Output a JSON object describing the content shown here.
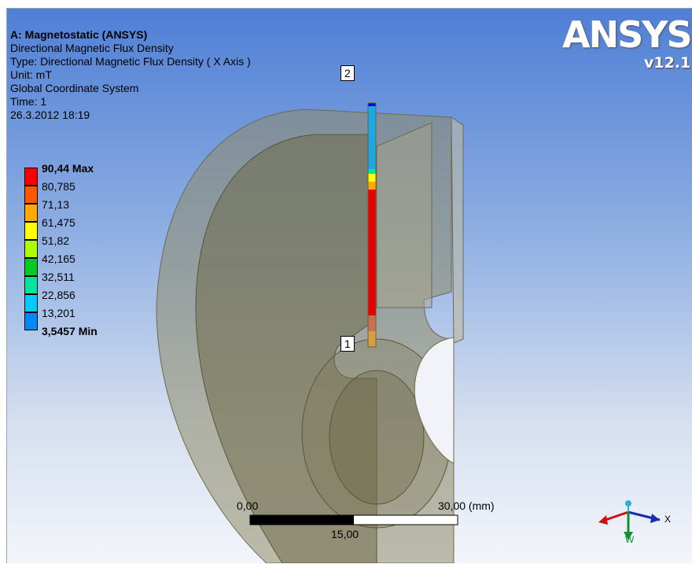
{
  "result_info": {
    "title": "A: Magnetostatic (ANSYS)",
    "result_name": "Directional Magnetic Flux Density",
    "type": "Type: Directional Magnetic Flux Density ( X Axis )",
    "unit": "Unit: mT",
    "coordinate_system": "Global Coordinate System",
    "time": "Time: 1",
    "timestamp": "26.3.2012 18:19"
  },
  "legend": {
    "entries": [
      {
        "label": "90,44 Max",
        "color": "#ff0000"
      },
      {
        "label": "80,785",
        "color": "#ff5600"
      },
      {
        "label": "71,13",
        "color": "#ffaa00"
      },
      {
        "label": "61,475",
        "color": "#ffff00"
      },
      {
        "label": "51,82",
        "color": "#aaff00"
      },
      {
        "label": "42,165",
        "color": "#00cc22"
      },
      {
        "label": "32,511",
        "color": "#00e6a0"
      },
      {
        "label": "22,856",
        "color": "#00ccff"
      },
      {
        "label": "13,201",
        "color": "#0088ff"
      },
      {
        "label": "3,5457 Min",
        "color": "#0000e0"
      }
    ]
  },
  "brand": {
    "name_a": "ANSYS",
    "name_sys": "",
    "version": "v12.1"
  },
  "probes": [
    {
      "label": "2"
    },
    {
      "label": "1"
    }
  ],
  "scale_bar": {
    "start": "0,00",
    "end": "30,00 (mm)",
    "mid": "15,00"
  },
  "triad": {
    "x_label": "X",
    "y_label": "Y",
    "z_label": "W"
  },
  "colors": {
    "model_fill": "#8b8660",
    "viewport_top": "#4f7fd6",
    "viewport_bottom": "#f3f5fa"
  }
}
